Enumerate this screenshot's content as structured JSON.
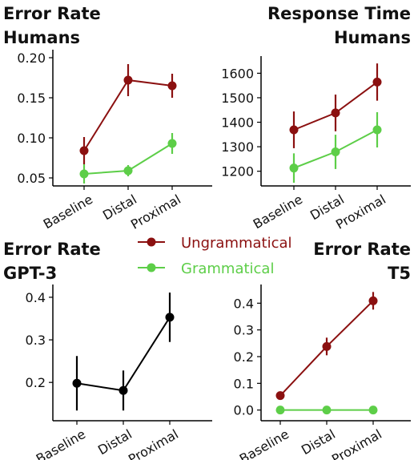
{
  "chart_data": [
    {
      "type": "line",
      "title": "Error Rate",
      "subtitle": "Humans",
      "categories": [
        "Baseline",
        "Distal",
        "Proximal"
      ],
      "series": [
        {
          "name": "Ungrammatical",
          "color": "#8b1010",
          "values": [
            0.084,
            0.172,
            0.165
          ],
          "errors": [
            0.017,
            0.02,
            0.015
          ]
        },
        {
          "name": "Grammatical",
          "color": "#5dce48",
          "values": [
            0.055,
            0.059,
            0.093
          ],
          "errors": [
            0.012,
            0.007,
            0.013
          ]
        }
      ],
      "ylim": [
        0.04,
        0.21
      ],
      "yticks": [
        0.05,
        {
          "value": 0.1,
          "label": "0.10"
        },
        0.15,
        {
          "value": 0.2,
          "label": "0.20"
        }
      ]
    },
    {
      "type": "line",
      "title": "Response Time",
      "subtitle": "Humans",
      "categories": [
        "Baseline",
        "Distal",
        "Proximal"
      ],
      "series": [
        {
          "name": "Ungrammatical",
          "color": "#8b1010",
          "values": [
            1369,
            1438,
            1564
          ],
          "errors": [
            75,
            75,
            76
          ]
        },
        {
          "name": "Grammatical",
          "color": "#5dce48",
          "values": [
            1213,
            1279,
            1369
          ],
          "errors": [
            60,
            70,
            72
          ]
        }
      ],
      "ylim": [
        1140,
        1670
      ],
      "yticks": [
        1200,
        1300,
        1400,
        1500,
        1600
      ]
    },
    {
      "type": "line",
      "title": "Error Rate",
      "subtitle": "GPT-3",
      "categories": [
        "Baseline",
        "Distal",
        "Proximal"
      ],
      "series": [
        {
          "color": "#000000",
          "values": [
            0.198,
            0.181,
            0.353
          ],
          "errors": [
            0.064,
            0.047,
            0.058
          ]
        }
      ],
      "ylim": [
        0.11,
        0.43
      ],
      "yticks": [
        0.2,
        0.3,
        0.4
      ]
    },
    {
      "type": "line",
      "title": "Error Rate",
      "subtitle": "T5",
      "categories": [
        "Baseline",
        "Distal",
        "Proximal"
      ],
      "series": [
        {
          "name": "Ungrammatical",
          "color": "#8b1010",
          "values": [
            0.054,
            0.238,
            0.409
          ],
          "errors": [
            0.01,
            0.033,
            0.033
          ]
        },
        {
          "name": "Grammatical",
          "color": "#5dce48",
          "values": [
            0,
            0,
            0
          ],
          "errors": [
            0,
            0,
            0
          ]
        }
      ],
      "ylim": [
        -0.04,
        0.47
      ],
      "yticks": [
        {
          "value": 0,
          "label": "0.0"
        },
        0.1,
        0.2,
        0.3,
        0.4
      ]
    }
  ]
}
